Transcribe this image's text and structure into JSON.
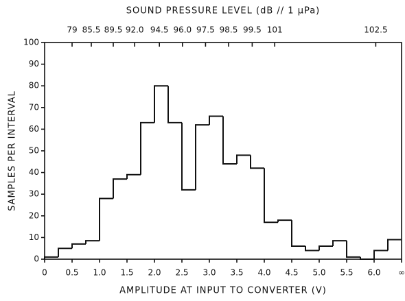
{
  "chart_data": {
    "type": "histogram",
    "x2label": "SOUND PRESSURE LEVEL (dB // 1 μPa)",
    "xlabel": "AMPLITUDE AT INPUT TO CONVERTER (V)",
    "ylabel": "SAMPLES PER INTERVAL",
    "bins": [
      0,
      0.25,
      0.5,
      0.75,
      1.0,
      1.25,
      1.5,
      1.75,
      2.0,
      2.25,
      2.5,
      2.75,
      3.0,
      3.25,
      3.5,
      3.75,
      4.0,
      4.25,
      4.5,
      4.75,
      5.0,
      5.25,
      5.5,
      5.75,
      6.0,
      6.25,
      6.5
    ],
    "values": [
      1,
      5,
      7,
      8.5,
      28,
      37,
      39,
      63,
      80,
      63,
      32,
      62,
      66,
      44,
      48,
      42,
      17,
      18,
      6,
      4,
      6,
      8.5,
      1,
      0,
      4,
      9
    ],
    "color": "#111111",
    "xlim": [
      0,
      6.5
    ],
    "xticks": [
      0,
      0.5,
      {
        "value": 1,
        "label": "1.0"
      },
      1.5,
      {
        "value": 2,
        "label": "2.0"
      },
      2.5,
      {
        "value": 3,
        "label": "3.0"
      },
      3.5,
      {
        "value": 4,
        "label": "4.0"
      },
      4.5,
      {
        "value": 5,
        "label": "5.0"
      },
      5.5,
      {
        "value": 6,
        "label": "6.0"
      },
      {
        "value": 6.5,
        "label": "∞"
      }
    ],
    "ylim": [
      0,
      100
    ],
    "yticks": [
      0,
      10,
      20,
      30,
      40,
      50,
      60,
      70,
      80,
      90,
      100
    ],
    "x2ticks": [
      79,
      85.5,
      89.5,
      {
        "value": 92,
        "label": "92.0"
      },
      94.5,
      {
        "value": 96,
        "label": "96.0"
      },
      97.5,
      98.5,
      99.5,
      101,
      102.5
    ],
    "x2tick_positions": [
      0.5,
      0.85,
      1.25,
      1.64,
      2.09,
      2.51,
      2.93,
      3.35,
      3.78,
      4.19,
      6.03
    ],
    "grid": false
  }
}
